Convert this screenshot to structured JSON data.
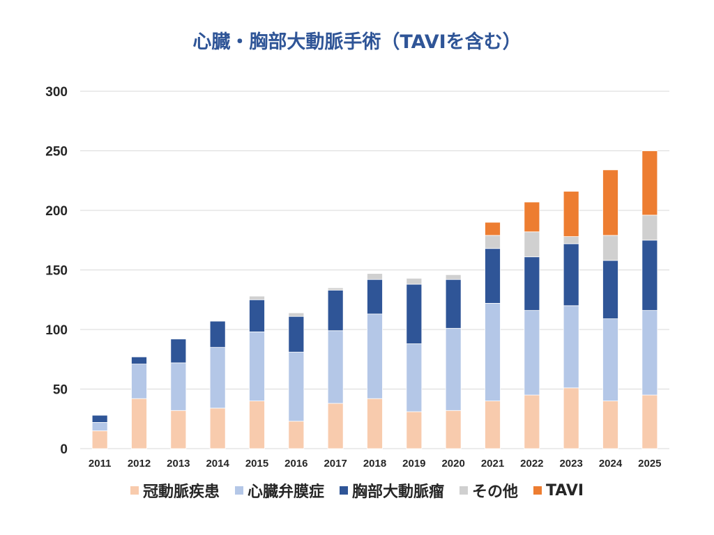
{
  "chart_data": {
    "type": "bar",
    "stacked": true,
    "title": "心臓・胸部大動脈手術（TAVIを含む）",
    "xlabel": "",
    "ylabel": "",
    "ylim": [
      0,
      300
    ],
    "yticks": [
      0,
      50,
      100,
      150,
      200,
      250,
      300
    ],
    "grid": true,
    "legend_position": "bottom",
    "categories": [
      "2011",
      "2012",
      "2013",
      "2014",
      "2015",
      "2016",
      "2017",
      "2018",
      "2019",
      "2020",
      "2021",
      "2022",
      "2023",
      "2024",
      "2025"
    ],
    "series": [
      {
        "name": "冠動脈疾患",
        "color": "#f8cbad",
        "values": [
          15,
          42,
          32,
          34,
          40,
          23,
          38,
          42,
          31,
          32,
          40,
          45,
          51,
          40,
          45
        ]
      },
      {
        "name": "心臓弁膜症",
        "color": "#b4c7e7",
        "values": [
          7,
          29,
          40,
          51,
          58,
          58,
          61,
          71,
          57,
          69,
          82,
          71,
          69,
          69,
          71
        ]
      },
      {
        "name": "胸部大動脈瘤",
        "color": "#2f5597",
        "values": [
          6,
          6,
          20,
          22,
          27,
          30,
          34,
          29,
          50,
          41,
          46,
          45,
          52,
          49,
          59
        ]
      },
      {
        "name": "その他",
        "color": "#d0d0d0",
        "values": [
          0,
          0,
          0,
          0,
          3,
          3,
          2,
          5,
          5,
          4,
          11,
          21,
          6,
          21,
          21
        ]
      },
      {
        "name": "TAVI",
        "color": "#ed7d31",
        "values": [
          0,
          0,
          0,
          0,
          0,
          0,
          0,
          0,
          0,
          0,
          11,
          25,
          38,
          55,
          54
        ]
      }
    ]
  }
}
